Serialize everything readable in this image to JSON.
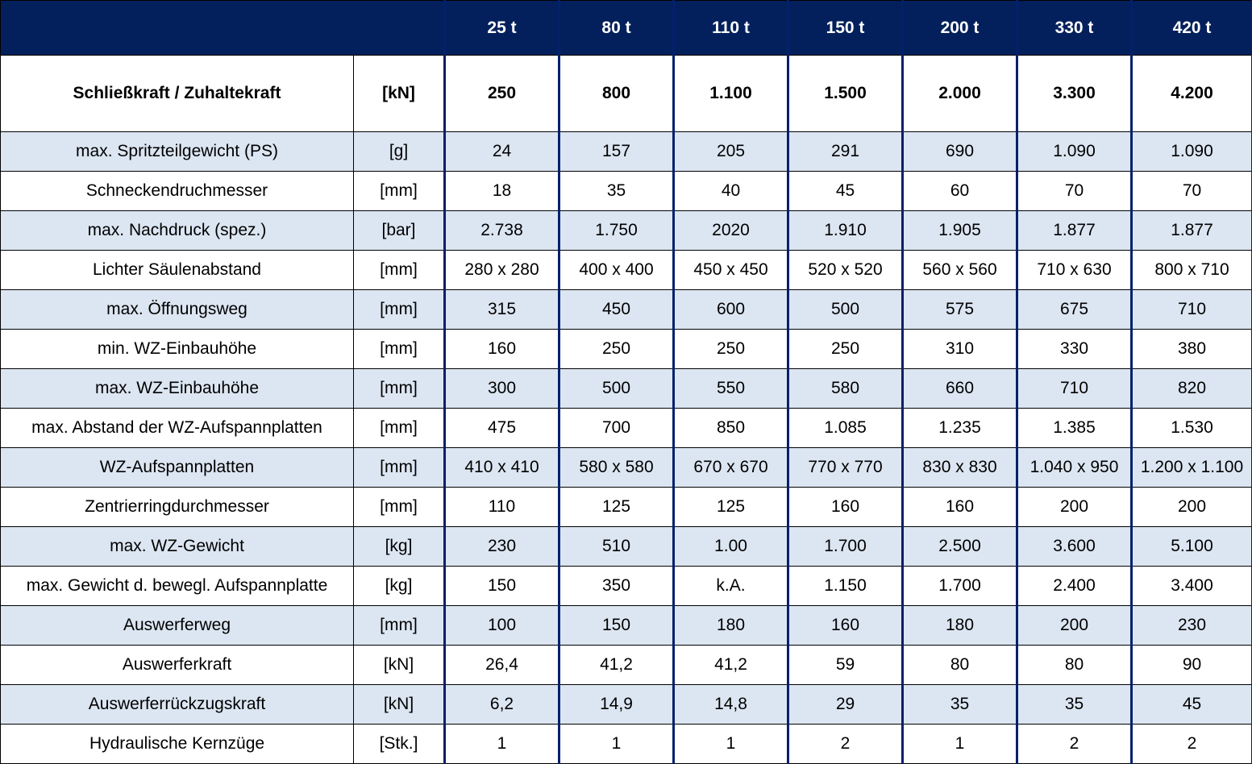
{
  "header": {
    "label": "",
    "unit": "",
    "columns": [
      "25 t",
      "80 t",
      "110 t",
      "150 t",
      "200 t",
      "330 t",
      "420 t"
    ]
  },
  "rows": [
    {
      "label": "Schließkraft / Zuhaltekraft",
      "unit": "[kN]",
      "values": [
        "250",
        "800",
        "1.100",
        "1.500",
        "2.000",
        "3.300",
        "4.200"
      ],
      "bold": true
    },
    {
      "label": "max. Spritzteilgewicht (PS)",
      "unit": "[g]",
      "values": [
        "24",
        "157",
        "205",
        "291",
        "690",
        "1.090",
        "1.090"
      ]
    },
    {
      "label": "Schneckendruchmesser",
      "unit": "[mm]",
      "values": [
        "18",
        "35",
        "40",
        "45",
        "60",
        "70",
        "70"
      ]
    },
    {
      "label": "max. Nachdruck (spez.)",
      "unit": "[bar]",
      "values": [
        "2.738",
        "1.750",
        "2020",
        "1.910",
        "1.905",
        "1.877",
        "1.877"
      ]
    },
    {
      "label": "Lichter Säulenabstand",
      "unit": "[mm]",
      "values": [
        "280 x 280",
        "400 x 400",
        "450 x 450",
        "520 x 520",
        "560 x 560",
        "710 x 630",
        "800 x 710"
      ]
    },
    {
      "label": "max. Öffnungsweg",
      "unit": "[mm]",
      "values": [
        "315",
        "450",
        "600",
        "500",
        "575",
        "675",
        "710"
      ]
    },
    {
      "label": "min. WZ-Einbauhöhe",
      "unit": "[mm]",
      "values": [
        "160",
        "250",
        "250",
        "250",
        "310",
        "330",
        "380"
      ]
    },
    {
      "label": "max. WZ-Einbauhöhe",
      "unit": "[mm]",
      "values": [
        "300",
        "500",
        "550",
        "580",
        "660",
        "710",
        "820"
      ]
    },
    {
      "label": "max. Abstand der WZ-Aufspannplatten",
      "unit": "[mm]",
      "values": [
        "475",
        "700",
        "850",
        "1.085",
        "1.235",
        "1.385",
        "1.530"
      ]
    },
    {
      "label": "WZ-Aufspannplatten",
      "unit": "[mm]",
      "values": [
        "410 x 410",
        "580 x 580",
        "670 x 670",
        "770 x 770",
        "830 x 830",
        "1.040 x 950",
        "1.200 x 1.100"
      ]
    },
    {
      "label": "Zentrierringdurchmesser",
      "unit": "[mm]",
      "values": [
        "110",
        "125",
        "125",
        "160",
        "160",
        "200",
        "200"
      ]
    },
    {
      "label": "max. WZ-Gewicht",
      "unit": "[kg]",
      "values": [
        "230",
        "510",
        "1.00",
        "1.700",
        "2.500",
        "3.600",
        "5.100"
      ]
    },
    {
      "label": "max. Gewicht d. bewegl. Aufspannplatte",
      "unit": "[kg]",
      "values": [
        "150",
        "350",
        "k.A.",
        "1.150",
        "1.700",
        "2.400",
        "3.400"
      ]
    },
    {
      "label": "Auswerferweg",
      "unit": "[mm]",
      "values": [
        "100",
        "150",
        "180",
        "160",
        "180",
        "200",
        "230"
      ]
    },
    {
      "label": "Auswerferkraft",
      "unit": "[kN]",
      "values": [
        "26,4",
        "41,2",
        "41,2",
        "59",
        "80",
        "80",
        "90"
      ]
    },
    {
      "label": "Auswerferrückzugskraft",
      "unit": "[kN]",
      "values": [
        "6,2",
        "14,9",
        "14,8",
        "29",
        "35",
        "35",
        "45"
      ]
    },
    {
      "label": "Hydraulische Kernzüge",
      "unit": "[Stk.]",
      "values": [
        "1",
        "1",
        "1",
        "2",
        "1",
        "2",
        "2"
      ]
    }
  ],
  "colors": {
    "header_bg": "#03205c",
    "header_text": "#ffffff",
    "shade_row": "#dce6f2",
    "separator": "#03206b"
  }
}
